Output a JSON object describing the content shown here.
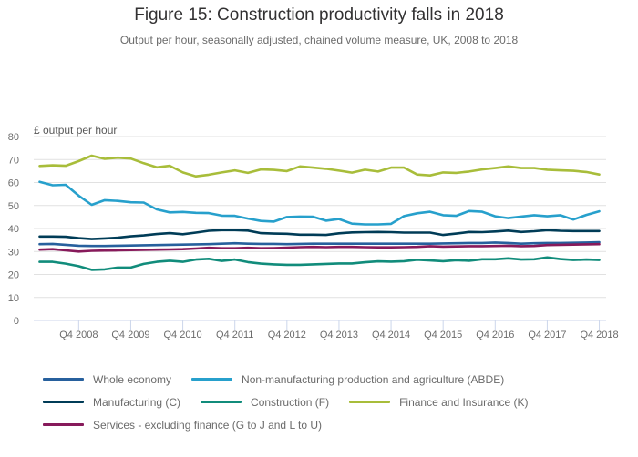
{
  "chart_data": {
    "type": "line",
    "title": "Figure 15: Construction productivity falls in 2018",
    "subtitle": "Output per hour, seasonally adjusted, chained volume measure, UK, 2008 to 2018",
    "ylabel": "£ output per hour",
    "xlabel": "",
    "ylim": [
      0,
      80
    ],
    "yticks": [
      0,
      10,
      20,
      30,
      40,
      50,
      60,
      70,
      80
    ],
    "grid": true,
    "legend_position": "bottom",
    "x": [
      "Q1 2008",
      "Q2 2008",
      "Q3 2008",
      "Q4 2008",
      "Q1 2009",
      "Q2 2009",
      "Q3 2009",
      "Q4 2009",
      "Q1 2010",
      "Q2 2010",
      "Q3 2010",
      "Q4 2010",
      "Q1 2011",
      "Q2 2011",
      "Q3 2011",
      "Q4 2011",
      "Q1 2012",
      "Q2 2012",
      "Q3 2012",
      "Q4 2012",
      "Q1 2013",
      "Q2 2013",
      "Q3 2013",
      "Q4 2013",
      "Q1 2014",
      "Q2 2014",
      "Q3 2014",
      "Q4 2014",
      "Q1 2015",
      "Q2 2015",
      "Q3 2015",
      "Q4 2015",
      "Q1 2016",
      "Q2 2016",
      "Q3 2016",
      "Q4 2016",
      "Q1 2017",
      "Q2 2017",
      "Q3 2017",
      "Q4 2017",
      "Q1 2018",
      "Q2 2018",
      "Q3 2018",
      "Q4 2018"
    ],
    "xtick_labels": [
      "Q4 2008",
      "Q4 2009",
      "Q4 2010",
      "Q4 2011",
      "Q4 2012",
      "Q4 2013",
      "Q4 2014",
      "Q4 2015",
      "Q4 2016",
      "Q4 2017",
      "Q4 2018"
    ],
    "series": [
      {
        "name": "Whole economy",
        "color": "#27609d",
        "values": [
          33.2,
          33.3,
          32.9,
          32.5,
          32.4,
          32.4,
          32.5,
          32.6,
          32.7,
          32.8,
          32.9,
          33.0,
          33.1,
          33.2,
          33.4,
          33.6,
          33.4,
          33.3,
          33.3,
          33.2,
          33.3,
          33.4,
          33.4,
          33.4,
          33.4,
          33.4,
          33.4,
          33.4,
          33.4,
          33.4,
          33.4,
          33.5,
          33.6,
          33.7,
          33.7,
          33.9,
          33.7,
          33.4,
          33.6,
          33.7,
          33.7,
          33.8,
          33.9,
          34.0
        ]
      },
      {
        "name": "Non-manufacturing production and agriculture (ABDE)",
        "color": "#27a0cc",
        "values": [
          60.3,
          58.8,
          59.0,
          54.3,
          50.3,
          52.3,
          52.0,
          51.4,
          51.3,
          48.3,
          47.0,
          47.2,
          46.8,
          46.7,
          45.6,
          45.5,
          44.3,
          43.3,
          43.0,
          45.0,
          45.2,
          45.1,
          43.4,
          44.1,
          42.1,
          41.8,
          41.8,
          42.0,
          45.4,
          46.6,
          47.3,
          45.8,
          45.5,
          47.6,
          47.3,
          45.3,
          44.5,
          45.2,
          45.8,
          45.3,
          45.8,
          43.9,
          45.9,
          47.5
        ]
      },
      {
        "name": "Manufacturing (C)",
        "color": "#003c57",
        "values": [
          36.5,
          36.5,
          36.4,
          35.8,
          35.4,
          35.7,
          36.0,
          36.6,
          37.0,
          37.6,
          38.0,
          37.5,
          38.2,
          39.0,
          39.3,
          39.3,
          39.1,
          38.0,
          37.8,
          37.7,
          37.3,
          37.3,
          37.2,
          37.9,
          38.3,
          38.4,
          38.5,
          38.4,
          38.2,
          38.2,
          38.2,
          37.2,
          37.8,
          38.5,
          38.4,
          38.7,
          39.1,
          38.5,
          38.8,
          39.3,
          39.0,
          38.9,
          38.9,
          38.9
        ]
      },
      {
        "name": "Construction (F)",
        "color": "#118c7b",
        "values": [
          25.5,
          25.5,
          24.7,
          23.6,
          22.0,
          22.2,
          23.0,
          23.0,
          24.6,
          25.5,
          26.0,
          25.5,
          26.5,
          26.8,
          25.9,
          26.5,
          25.4,
          24.7,
          24.4,
          24.2,
          24.2,
          24.4,
          24.6,
          24.8,
          24.8,
          25.3,
          25.7,
          25.6,
          25.8,
          26.4,
          26.1,
          25.8,
          26.2,
          26.0,
          26.6,
          26.6,
          27.0,
          26.5,
          26.6,
          27.4,
          26.7,
          26.3,
          26.5,
          26.3
        ]
      },
      {
        "name": "Finance and Insurance (K)",
        "color": "#a8bd3a",
        "values": [
          67.2,
          67.5,
          67.3,
          69.3,
          71.7,
          70.3,
          70.8,
          70.4,
          68.4,
          66.6,
          67.3,
          64.4,
          62.7,
          63.4,
          64.4,
          65.3,
          64.2,
          65.7,
          65.5,
          65.0,
          67.0,
          66.5,
          66.0,
          65.2,
          64.3,
          65.6,
          64.8,
          66.5,
          66.5,
          63.5,
          63.1,
          64.4,
          64.2,
          64.8,
          65.7,
          66.3,
          67.0,
          66.3,
          66.3,
          65.6,
          65.3,
          65.1,
          64.6,
          63.5
        ]
      },
      {
        "name": "Services - excluding finance (G to J and L to U)",
        "color": "#871a5b",
        "values": [
          30.8,
          31.0,
          30.5,
          30.0,
          30.3,
          30.4,
          30.5,
          30.6,
          30.7,
          30.8,
          30.9,
          31.0,
          31.3,
          31.6,
          31.4,
          31.4,
          31.6,
          31.4,
          31.5,
          31.7,
          31.9,
          32.0,
          31.9,
          32.0,
          32.0,
          31.9,
          31.8,
          31.8,
          31.9,
          32.0,
          32.3,
          32.1,
          32.2,
          32.3,
          32.3,
          32.4,
          32.5,
          32.3,
          32.4,
          32.8,
          32.9,
          33.0,
          33.1,
          33.2
        ]
      }
    ]
  },
  "legend": {
    "rows": [
      [
        0,
        1
      ],
      [
        2,
        3,
        4
      ],
      [
        5
      ]
    ]
  }
}
